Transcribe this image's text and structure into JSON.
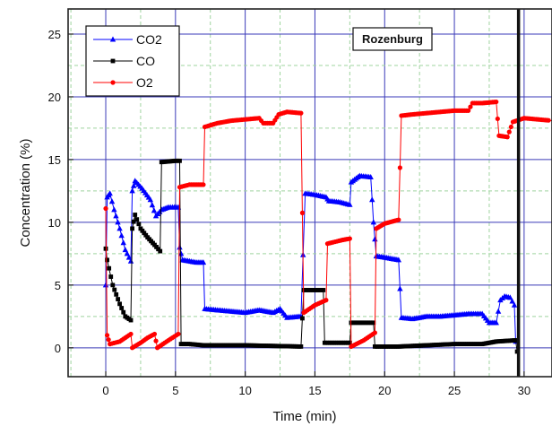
{
  "chart_data": {
    "type": "line",
    "title": "",
    "xlabel": "Time (min)",
    "ylabel": "Concentration (%)",
    "xlim": [
      -2.7,
      32
    ],
    "ylim": [
      -2.3,
      27
    ],
    "x_ticks": [
      0,
      5,
      10,
      15,
      20,
      25,
      30
    ],
    "y_ticks": [
      0,
      5,
      10,
      15,
      20,
      25
    ],
    "grid": true,
    "legend_position": "top-left",
    "annotation": "Rozenburg",
    "vertical_line_x": 29.6,
    "colors": {
      "CO2": "#0000ff",
      "CO": "#000000",
      "O2": "#ff0000",
      "grid_major": "#3a3ab8",
      "grid_minor": "#9fd49f"
    },
    "series": [
      {
        "name": "CO2",
        "marker": "triangle",
        "color": "#0000ff",
        "points": [
          [
            0,
            5
          ],
          [
            0.1,
            12
          ],
          [
            0.3,
            12.3
          ],
          [
            0.6,
            11
          ],
          [
            1,
            9.5
          ],
          [
            1.4,
            7.8
          ],
          [
            1.8,
            6.9
          ],
          [
            1.9,
            12.5
          ],
          [
            2.1,
            13.3
          ],
          [
            2.6,
            12.7
          ],
          [
            3.2,
            11.8
          ],
          [
            3.6,
            10.5
          ],
          [
            4,
            11
          ],
          [
            4.5,
            11.2
          ],
          [
            5.2,
            11.2
          ],
          [
            5.3,
            8
          ],
          [
            5.5,
            7
          ],
          [
            6.5,
            6.8
          ],
          [
            7,
            6.8
          ],
          [
            7.1,
            3.1
          ],
          [
            8,
            3.0
          ],
          [
            9,
            2.9
          ],
          [
            10,
            2.8
          ],
          [
            11,
            3.0
          ],
          [
            12,
            2.8
          ],
          [
            12.5,
            3.1
          ],
          [
            13,
            2.4
          ],
          [
            14,
            2.5
          ],
          [
            14.3,
            12.3
          ],
          [
            15,
            12.2
          ],
          [
            15.8,
            12.0
          ],
          [
            16,
            11.7
          ],
          [
            16.8,
            11.6
          ],
          [
            17.5,
            11.4
          ],
          [
            17.6,
            13.2
          ],
          [
            18.2,
            13.7
          ],
          [
            19,
            13.6
          ],
          [
            19.2,
            10
          ],
          [
            19.4,
            7.3
          ],
          [
            20,
            7.2
          ],
          [
            21,
            7.0
          ],
          [
            21.2,
            2.4
          ],
          [
            22,
            2.3
          ],
          [
            23,
            2.5
          ],
          [
            24,
            2.5
          ],
          [
            25,
            2.6
          ],
          [
            26,
            2.7
          ],
          [
            27,
            2.7
          ],
          [
            27.5,
            2.0
          ],
          [
            28,
            2.0
          ],
          [
            28.3,
            3.8
          ],
          [
            28.6,
            4.1
          ],
          [
            29,
            4.0
          ],
          [
            29.3,
            3.4
          ],
          [
            29.4,
            0.5
          ]
        ]
      },
      {
        "name": "CO",
        "marker": "square",
        "color": "#000000",
        "points": [
          [
            0,
            7.9
          ],
          [
            0.1,
            7.0
          ],
          [
            0.5,
            5.0
          ],
          [
            1,
            3.5
          ],
          [
            1.4,
            2.5
          ],
          [
            1.8,
            2.2
          ],
          [
            1.9,
            9.5
          ],
          [
            2.1,
            10.6
          ],
          [
            2.5,
            9.5
          ],
          [
            3,
            8.8
          ],
          [
            3.5,
            8.2
          ],
          [
            3.9,
            7.7
          ],
          [
            4,
            14.8
          ],
          [
            5,
            14.9
          ],
          [
            5.3,
            14.9
          ],
          [
            5.4,
            0.3
          ],
          [
            6,
            0.3
          ],
          [
            7,
            0.2
          ],
          [
            8,
            0.2
          ],
          [
            10,
            0.2
          ],
          [
            12,
            0.15
          ],
          [
            14,
            0.1
          ],
          [
            14.2,
            4.6
          ],
          [
            15,
            4.6
          ],
          [
            15.6,
            4.6
          ],
          [
            15.7,
            0.4
          ],
          [
            17,
            0.4
          ],
          [
            17.5,
            0.4
          ],
          [
            17.6,
            2.0
          ],
          [
            18.5,
            2.0
          ],
          [
            19.2,
            2.0
          ],
          [
            19.3,
            0.1
          ],
          [
            21,
            0.1
          ],
          [
            23,
            0.2
          ],
          [
            25,
            0.3
          ],
          [
            27,
            0.3
          ],
          [
            28,
            0.5
          ],
          [
            29.4,
            0.6
          ],
          [
            29.5,
            -0.3
          ]
        ]
      },
      {
        "name": "O2",
        "marker": "circle",
        "color": "#ff0000",
        "points": [
          [
            0,
            11.1
          ],
          [
            0.1,
            1
          ],
          [
            0.3,
            0.3
          ],
          [
            1,
            0.5
          ],
          [
            1.8,
            1.1
          ],
          [
            1.9,
            0
          ],
          [
            2.5,
            0.4
          ],
          [
            3,
            0.8
          ],
          [
            3.5,
            1.1
          ],
          [
            3.7,
            0.0
          ],
          [
            4.5,
            0.6
          ],
          [
            5.2,
            1.1
          ],
          [
            5.3,
            12.8
          ],
          [
            6,
            13.0
          ],
          [
            7,
            13.0
          ],
          [
            7.1,
            17.6
          ],
          [
            8,
            17.9
          ],
          [
            9,
            18.1
          ],
          [
            10,
            18.2
          ],
          [
            11,
            18.3
          ],
          [
            11.3,
            17.9
          ],
          [
            12,
            17.9
          ],
          [
            12.4,
            18.6
          ],
          [
            13,
            18.8
          ],
          [
            14,
            18.7
          ],
          [
            14.2,
            2.8
          ],
          [
            15,
            3.4
          ],
          [
            15.8,
            3.8
          ],
          [
            15.9,
            8.3
          ],
          [
            17,
            8.6
          ],
          [
            17.5,
            8.7
          ],
          [
            17.6,
            0.1
          ],
          [
            18.5,
            0.6
          ],
          [
            19.3,
            1.2
          ],
          [
            19.4,
            9.5
          ],
          [
            20,
            9.9
          ],
          [
            21,
            10.2
          ],
          [
            21.2,
            18.5
          ],
          [
            22,
            18.6
          ],
          [
            23,
            18.7
          ],
          [
            24,
            18.8
          ],
          [
            25,
            18.9
          ],
          [
            26,
            18.9
          ],
          [
            26.3,
            19.5
          ],
          [
            27,
            19.5
          ],
          [
            28,
            19.6
          ],
          [
            28.2,
            16.9
          ],
          [
            28.8,
            16.8
          ],
          [
            29.2,
            18.0
          ],
          [
            30,
            18.3
          ],
          [
            31,
            18.2
          ],
          [
            32,
            18.1
          ]
        ]
      }
    ]
  }
}
